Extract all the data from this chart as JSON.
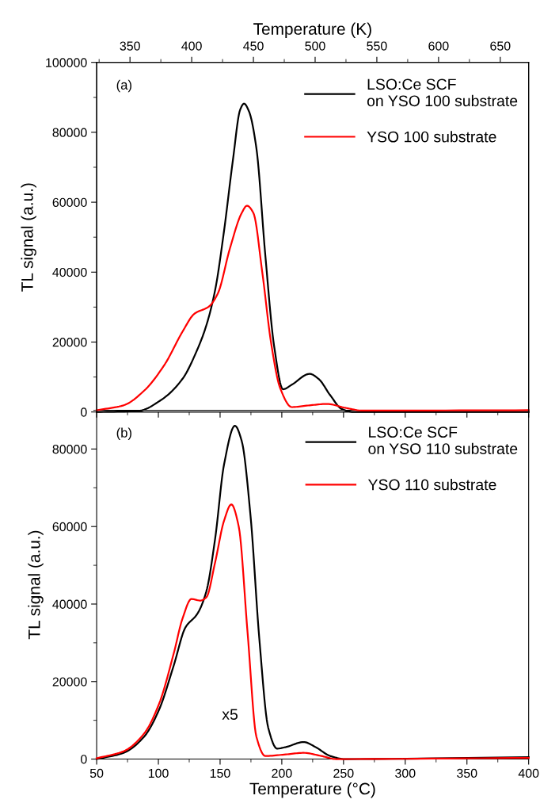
{
  "chart_data": [
    {
      "type": "line",
      "x2label": "Temperature (K)",
      "ylabel": "TL signal (a.u.)",
      "annotations": [
        "(a)"
      ],
      "xlim": [
        50,
        400
      ],
      "xticks": [
        50,
        100,
        150,
        200,
        250,
        300,
        350,
        400
      ],
      "x2lim": [
        323,
        673
      ],
      "x2ticks": [
        350,
        400,
        450,
        500,
        550,
        600,
        650
      ],
      "ylim": [
        0,
        100000
      ],
      "yticks": [
        0,
        20000,
        40000,
        60000,
        80000,
        100000
      ],
      "tick_labels": "y",
      "legend": "top right",
      "grid": false,
      "series": [
        {
          "name": "LSO:Ce SCF\non YSO 100 substrate",
          "color": "#000000",
          "x": [
            50,
            83.7,
            102.9,
            119.6,
            131.6,
            138.8,
            146,
            153.2,
            160.4,
            166.3,
            169.4,
            173.4,
            179.4,
            186.6,
            193.8,
            201,
            208.1,
            222.5,
            229.7,
            239.2,
            248.8,
            258.4,
            400
          ],
          "values": [
            0,
            300,
            3600,
            9500,
            17900,
            24700,
            34900,
            51800,
            72100,
            86500,
            88200,
            86000,
            75500,
            45000,
            18800,
            6500,
            7800,
            10900,
            9500,
            4800,
            800,
            0,
            0
          ]
        },
        {
          "name": "YSO 100 substrate",
          "color": "#ff0000",
          "x": [
            50,
            71.8,
            88.5,
            105.3,
            119.6,
            129.2,
            141.1,
            148.3,
            157.9,
            167.5,
            171.8,
            177,
            184.2,
            191.4,
            198.6,
            208.1,
            222.5,
            236.8,
            251.2,
            265.6,
            400
          ],
          "values": [
            500,
            1900,
            6100,
            13700,
            23000,
            28100,
            30200,
            34000,
            46700,
            56900,
            59000,
            56900,
            39900,
            19600,
            6900,
            1400,
            1900,
            2300,
            1200,
            400,
            500
          ]
        }
      ]
    },
    {
      "type": "line",
      "xlabel": "Temperature (°C)",
      "ylabel": "TL signal (a.u.)",
      "annotations": [
        "(b)",
        "x5"
      ],
      "xlim": [
        50,
        400
      ],
      "xticks": [
        50,
        100,
        150,
        200,
        250,
        300,
        350,
        400
      ],
      "ylim": [
        0,
        90000
      ],
      "yticks": [
        0,
        20000,
        40000,
        60000,
        80000
      ],
      "legend": "top right",
      "grid": false,
      "series": [
        {
          "name": "LSO:Ce SCF\non YSO 110 substrate",
          "color": "#000000",
          "x": [
            50,
            71.8,
            88.5,
            100.5,
            112.4,
            122,
            131.6,
            138.8,
            146,
            153.2,
            162,
            167.5,
            174.6,
            181.8,
            189,
            196.2,
            203.3,
            217.7,
            227.3,
            239.2,
            251.2,
            400
          ],
          "values": [
            0,
            1600,
            5800,
            12700,
            24100,
            34000,
            37500,
            43200,
            56900,
            76000,
            86000,
            82100,
            63000,
            31000,
            8100,
            2700,
            3100,
            4400,
            3100,
            800,
            0,
            500
          ]
        },
        {
          "name": "YSO 110 substrate",
          "color": "#ff0000",
          "x": [
            50,
            71.8,
            88.5,
            100.5,
            112.4,
            119.6,
            126.8,
            134,
            138.8,
            146,
            153.2,
            159.1,
            165.1,
            172.3,
            179.4,
            186.6,
            203.3,
            217.7,
            232,
            244,
            400
          ],
          "values": [
            200,
            2000,
            6600,
            14200,
            27200,
            36300,
            41300,
            40900,
            41700,
            50800,
            61500,
            65700,
            60000,
            32500,
            5800,
            800,
            1200,
            1600,
            800,
            0,
            300
          ]
        }
      ]
    }
  ]
}
